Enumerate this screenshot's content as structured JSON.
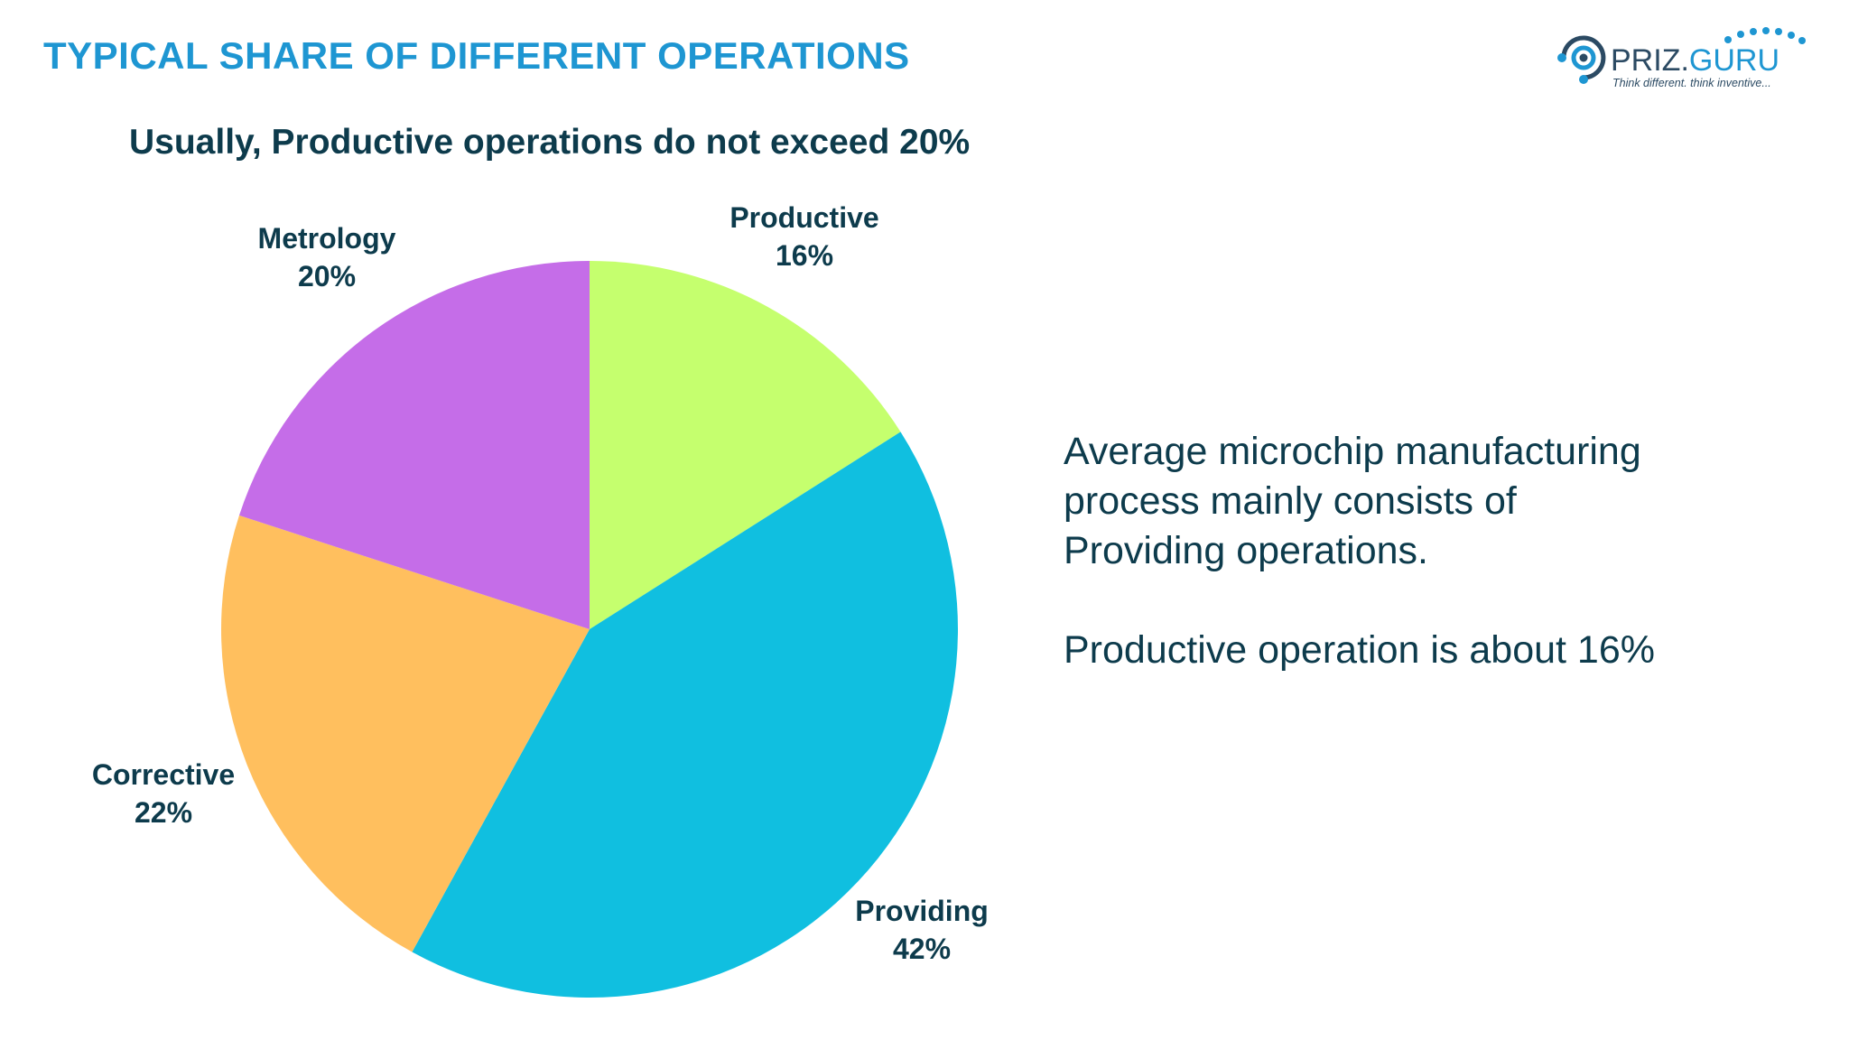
{
  "title": "TYPICAL SHARE OF DIFFERENT OPERATIONS",
  "subtitle": "Usually, Productive operations do not exceed 20%",
  "logo": {
    "brand": "PRIZ.GURU",
    "brand_prefix": "PRIZ.",
    "brand_suffix": "GURU",
    "tagline": "Think different. think inventive...",
    "color_dark": "#2b4a63",
    "color_accent": "#1e96d2"
  },
  "body": {
    "paragraph_1": "Average microchip manufacturing process mainly consists of Providing operations.",
    "paragraph_1_lines": [
      "Average microchip manufacturing",
      "process mainly consists of",
      "Providing operations."
    ],
    "paragraph_2": "Productive operation is about 16%"
  },
  "chart_data": {
    "type": "pie",
    "title": "",
    "start_angle_deg": 0,
    "direction": "clockwise",
    "slices": [
      {
        "name": "Productive",
        "value": 16,
        "label": "16%",
        "color": "#c5ff6e"
      },
      {
        "name": "Providing",
        "value": 42,
        "label": "42%",
        "color": "#10bfe0"
      },
      {
        "name": "Corrective",
        "value": 22,
        "label": "22%",
        "color": "#ffbf5e"
      },
      {
        "name": "Metrology",
        "value": 20,
        "label": "20%",
        "color": "#c56de8"
      }
    ],
    "legend": "none"
  }
}
